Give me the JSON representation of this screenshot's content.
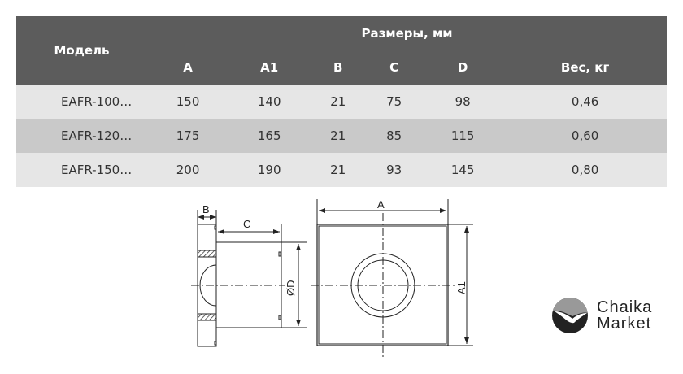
{
  "table": {
    "model_header": "Модель",
    "group_header": "Размеры, мм",
    "columns": [
      "A",
      "A1",
      "B",
      "C",
      "D",
      "Вес, кг"
    ],
    "rows": [
      {
        "model": "EAFR-100…",
        "values": [
          "150",
          "140",
          "21",
          "75",
          "98",
          "0,46"
        ]
      },
      {
        "model": "EAFR-120…",
        "values": [
          "175",
          "165",
          "21",
          "85",
          "115",
          "0,60"
        ]
      },
      {
        "model": "EAFR-150…",
        "values": [
          "200",
          "190",
          "21",
          "93",
          "145",
          "0,80"
        ]
      }
    ]
  },
  "drawing": {
    "labels": {
      "b": "B",
      "c": "C",
      "d": "ØD",
      "a": "A",
      "a1": "A1"
    }
  },
  "logo": {
    "line1": "Chaika",
    "line2": "Market"
  }
}
